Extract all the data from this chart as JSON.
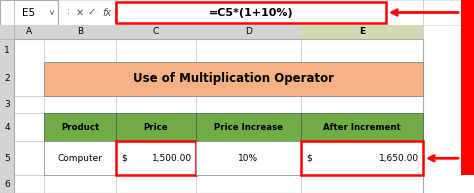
{
  "formula_bar_cell": "E5",
  "formula_bar_formula": "=C5*(1+10%)",
  "title_text": "Use of Multiplication Operator",
  "title_bg": "#F4B183",
  "header_bg": "#70AD47",
  "header_text_color": "#000000",
  "headers": [
    "Product",
    "Price",
    "Price Increase",
    "After Increment"
  ],
  "red_box_color": "#FF0000",
  "formula_box_bg": "#FFFFFF",
  "col_header_letters": [
    "A",
    "B",
    "C",
    "D",
    "E"
  ],
  "row_header_numbers": [
    "1",
    "2",
    "3",
    "4",
    "5",
    "6"
  ],
  "excel_header_bg": "#D4D4D4",
  "excel_selected_col_bg": "#CCDCB0",
  "arrow_color": "#FF0000",
  "grid_color": "#C0C0C0",
  "formula_bar_bg": "#FFFFFF",
  "formula_bar_icons_color": "#555555"
}
